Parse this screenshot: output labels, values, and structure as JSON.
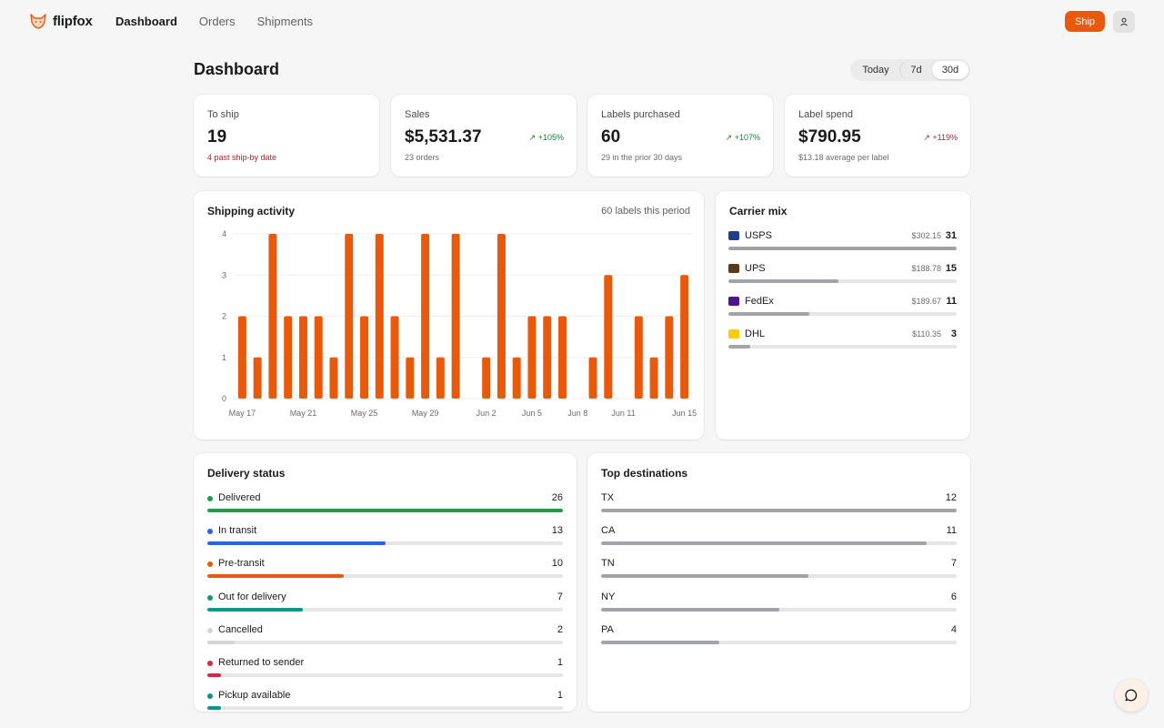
{
  "brand": {
    "name": "flipfox"
  },
  "nav": {
    "items": [
      "Dashboard",
      "Orders",
      "Shipments"
    ],
    "active": "Dashboard"
  },
  "header": {
    "ship_label": "Ship",
    "user_icon": "user-icon"
  },
  "page": {
    "title": "Dashboard"
  },
  "range": {
    "options": [
      "Today",
      "7d",
      "30d"
    ],
    "selected": "30d"
  },
  "stats": [
    {
      "label": "To ship",
      "value": "19",
      "sub": "4 past ship-by date",
      "trend": ""
    },
    {
      "label": "Sales",
      "value": "$5,531.37",
      "sub": "23 orders",
      "trend": "↗ +105%"
    },
    {
      "label": "Labels purchased",
      "value": "60",
      "sub": "29 in the prior 30 days",
      "trend": "↗ +107%"
    },
    {
      "label": "Label spend",
      "value": "$790.95",
      "sub": "$13.18 average per label",
      "trend": "↗ +119%"
    }
  ],
  "activity": {
    "title": "Shipping activity",
    "meta": "60 labels this period"
  },
  "chart_data": {
    "type": "bar",
    "title": "Shipping activity",
    "xlabel": "",
    "ylabel": "",
    "ylim": [
      0,
      4
    ],
    "yticks": [
      0,
      1,
      2,
      3,
      4
    ],
    "x_tick_labels": [
      {
        "label": "May 17",
        "index": 0
      },
      {
        "label": "May 21",
        "index": 4
      },
      {
        "label": "May 25",
        "index": 8
      },
      {
        "label": "May 29",
        "index": 12
      },
      {
        "label": "Jun 2",
        "index": 16
      },
      {
        "label": "Jun 5",
        "index": 19
      },
      {
        "label": "Jun 8",
        "index": 22
      },
      {
        "label": "Jun 11",
        "index": 25
      },
      {
        "label": "Jun 15",
        "index": 29
      }
    ],
    "categories": [
      "May 17",
      "May 18",
      "May 19",
      "May 20",
      "May 21",
      "May 22",
      "May 23",
      "May 24",
      "May 25",
      "May 26",
      "May 27",
      "May 28",
      "May 29",
      "May 30",
      "May 31",
      "Jun 1",
      "Jun 2",
      "Jun 3",
      "Jun 4",
      "Jun 5",
      "Jun 6",
      "Jun 7",
      "Jun 8",
      "Jun 9",
      "Jun 10",
      "Jun 11",
      "Jun 12",
      "Jun 13",
      "Jun 14",
      "Jun 15"
    ],
    "values": [
      2,
      1,
      4,
      2,
      2,
      2,
      1,
      4,
      2,
      4,
      2,
      1,
      4,
      1,
      4,
      0,
      1,
      4,
      1,
      2,
      2,
      2,
      0,
      1,
      3,
      0,
      2,
      1,
      2,
      3
    ],
    "color": "#e8590c",
    "grid": true
  },
  "carrier_mix": {
    "title": "Carrier mix",
    "items": [
      {
        "name": "USPS",
        "amount": "$302.15",
        "count": 31,
        "icon": "usps-icon",
        "icon_color": "#1f3f8a"
      },
      {
        "name": "UPS",
        "amount": "$188.78",
        "count": 15,
        "icon": "ups-icon",
        "icon_color": "#5a3a1a"
      },
      {
        "name": "FedEx",
        "amount": "$189.67",
        "count": 11,
        "icon": "fedex-icon",
        "icon_color": "#4d148c"
      },
      {
        "name": "DHL",
        "amount": "$110.35",
        "count": 3,
        "icon": "dhl-icon",
        "icon_color": "#ffcc00"
      }
    ],
    "bar_color": "#a3a3aa"
  },
  "delivery_status": {
    "title": "Delivery status",
    "items": [
      {
        "label": "Delivered",
        "count": 26,
        "color": "#1a9e4a"
      },
      {
        "label": "In transit",
        "count": 13,
        "color": "#2c63e0"
      },
      {
        "label": "Pre-transit",
        "count": 10,
        "color": "#e8590c"
      },
      {
        "label": "Out for delivery",
        "count": 7,
        "color": "#119488"
      },
      {
        "label": "Cancelled",
        "count": 2,
        "color": "#d4d4d4"
      },
      {
        "label": "Returned to sender",
        "count": 1,
        "color": "#d7263d"
      },
      {
        "label": "Pickup available",
        "count": 1,
        "color": "#119488"
      }
    ]
  },
  "destinations": {
    "title": "Top destinations",
    "items": [
      {
        "label": "TX",
        "count": 12
      },
      {
        "label": "CA",
        "count": 11
      },
      {
        "label": "TN",
        "count": 7
      },
      {
        "label": "NY",
        "count": 6
      },
      {
        "label": "PA",
        "count": 4
      }
    ],
    "bar_color": "#a3a3aa"
  },
  "chat": {
    "icon": "chat-icon"
  }
}
